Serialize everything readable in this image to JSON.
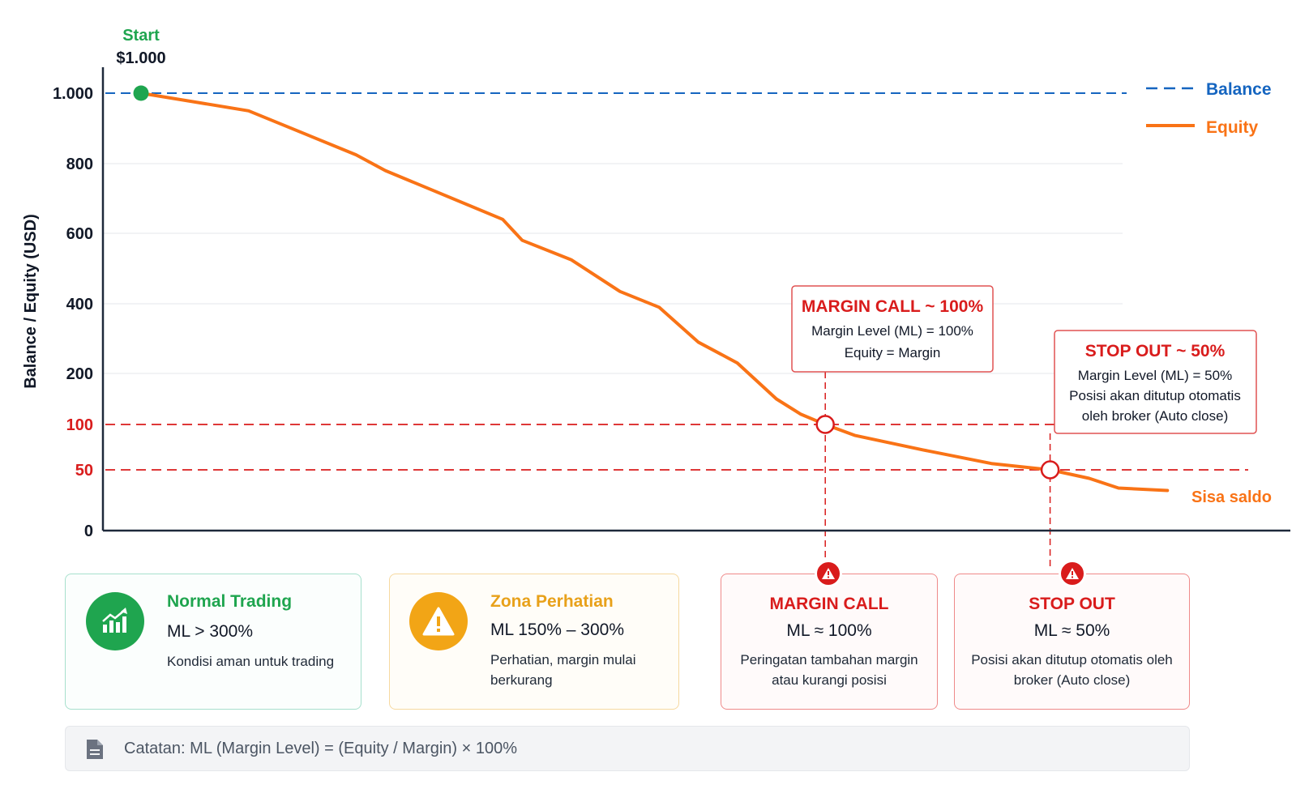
{
  "chart_data": {
    "type": "line",
    "ylabel": "Balance / Equity (USD)",
    "y_ticks": [
      {
        "value": 0,
        "label": "0",
        "style": "normal"
      },
      {
        "value": 50,
        "label": "50",
        "style": "red"
      },
      {
        "value": 100,
        "label": "100",
        "style": "red"
      },
      {
        "value": 200,
        "label": "200",
        "style": "normal"
      },
      {
        "value": 400,
        "label": "400",
        "style": "normal"
      },
      {
        "value": 600,
        "label": "600",
        "style": "normal"
      },
      {
        "value": 800,
        "label": "800",
        "style": "normal"
      },
      {
        "value": 1000,
        "label": "1.000",
        "style": "normal"
      }
    ],
    "gridlines": [
      200,
      400,
      600,
      800
    ],
    "legend_position": "top-right",
    "legend": [
      {
        "label": "Balance",
        "color": "#1565c0",
        "style": "dashed"
      },
      {
        "label": "Equity",
        "color": "#f97316",
        "style": "solid"
      }
    ],
    "series": [
      {
        "name": "Balance",
        "color": "#1565c0",
        "points": [
          [
            0,
            1000
          ],
          [
            1,
            1000
          ]
        ]
      },
      {
        "name": "Equity",
        "color": "#f97316",
        "points": [
          [
            0.0,
            1000
          ],
          [
            0.11,
            950
          ],
          [
            0.22,
            825
          ],
          [
            0.25,
            780
          ],
          [
            0.37,
            640
          ],
          [
            0.39,
            580
          ],
          [
            0.44,
            525
          ],
          [
            0.49,
            435
          ],
          [
            0.53,
            390
          ],
          [
            0.57,
            290
          ],
          [
            0.61,
            230
          ],
          [
            0.65,
            150
          ],
          [
            0.675,
            120
          ],
          [
            0.7,
            100
          ],
          [
            0.73,
            88
          ],
          [
            0.8,
            72
          ],
          [
            0.87,
            57
          ],
          [
            0.93,
            50
          ],
          [
            0.97,
            43
          ],
          [
            1.0,
            35
          ],
          [
            1.05,
            33
          ]
        ]
      }
    ],
    "reference_lines": [
      {
        "value": 100,
        "color": "#d91c1c"
      },
      {
        "value": 50,
        "color": "#d91c1c"
      }
    ],
    "start_point": {
      "title": "Start",
      "value_label": "$1.000",
      "y": 1000,
      "color": "#1fa54f"
    },
    "end_label": "Sisa saldo",
    "annotations": [
      {
        "title": "MARGIN CALL ~ 100%",
        "lines": [
          "Margin Level (ML) = 100%",
          "Equity = Margin"
        ],
        "y": 100
      },
      {
        "title": "STOP OUT ~ 50%",
        "lines": [
          "Margin Level (ML) = 50%",
          "Posisi akan ditutup otomatis",
          "oleh broker (Auto close)"
        ],
        "y": 50
      }
    ]
  },
  "cards": {
    "normal": {
      "icon": "chart-up-icon",
      "color": "#1fa54f",
      "title": "Normal Trading",
      "ml": "ML > 300%",
      "desc": "Kondisi aman untuk trading"
    },
    "zona": {
      "icon": "warning-icon",
      "color": "#f2a516",
      "title": "Zona Perhatian",
      "ml": "ML 150% – 300%",
      "desc": "Perhatian, margin mulai berkurang"
    },
    "margin_call": {
      "icon": "alert-icon",
      "color": "#d91c1c",
      "title": "MARGIN CALL",
      "ml": "ML ≈ 100%",
      "desc": "Peringatan tambahan margin atau kurangi posisi"
    },
    "stop_out": {
      "icon": "alert-icon",
      "color": "#d91c1c",
      "title": "STOP OUT",
      "ml": "ML ≈ 50%",
      "desc": "Posisi akan ditutup otomatis oleh broker (Auto close)"
    }
  },
  "note": {
    "icon": "document-icon",
    "text": "Catatan: ML (Margin Level) = (Equity / Margin) × 100%"
  }
}
